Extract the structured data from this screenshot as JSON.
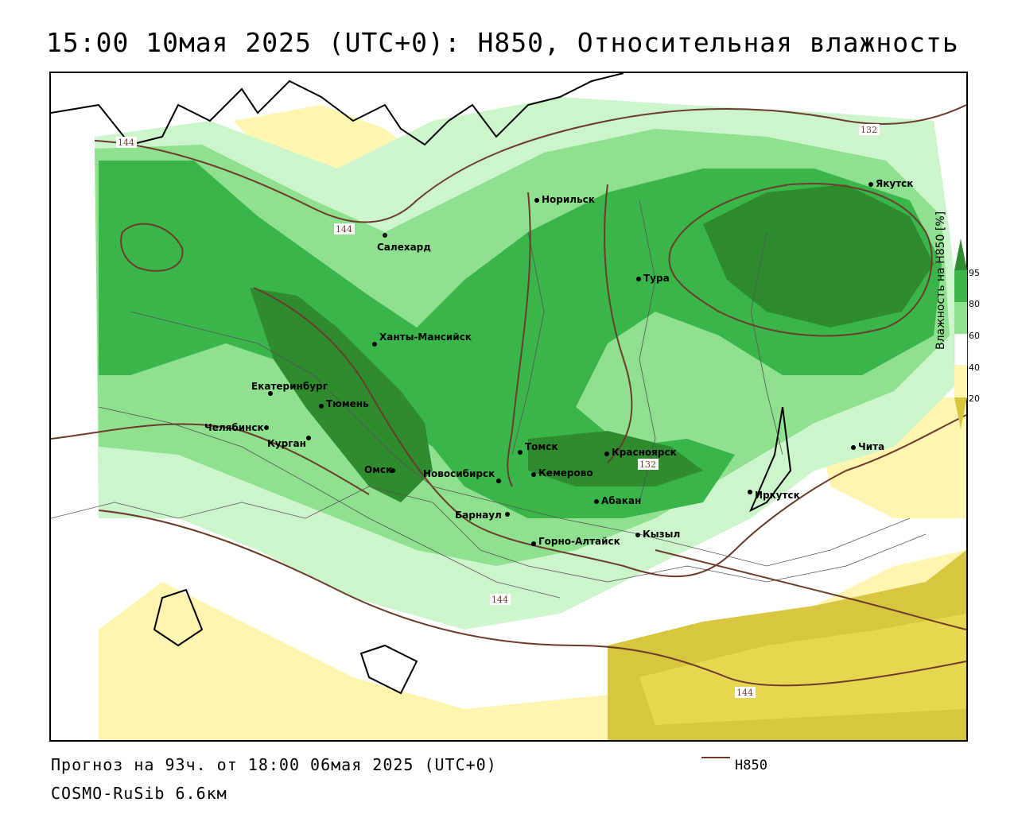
{
  "title": "15:00 10мая 2025 (UTC+0): H850, Относительная влажность",
  "forecast": "Прогноз на 93ч. от 18:00 06мая 2025 (UTC+0)",
  "model": "COSMO-RuSib 6.6км",
  "legend": {
    "line_label": "H850",
    "line_color": "#6b3b2b"
  },
  "colorbar": {
    "title": "Влажность на H850 [%]",
    "ticks": [
      "95",
      "80",
      "60",
      "40",
      "20"
    ],
    "colors": [
      "#2e8b2e",
      "#39b54a",
      "#8fe08f",
      "#ccf5cc",
      "#ffffff",
      "#fff5b0",
      "#d8c640"
    ]
  },
  "cities": [
    {
      "name": "Норильск"
    },
    {
      "name": "Якутск"
    },
    {
      "name": "Салехард"
    },
    {
      "name": "Тура"
    },
    {
      "name": "Ханты-Мансийск"
    },
    {
      "name": "Екатеринбург"
    },
    {
      "name": "Тюмень"
    },
    {
      "name": "Челябинск"
    },
    {
      "name": "Курган"
    },
    {
      "name": "Омск"
    },
    {
      "name": "Новосибирск"
    },
    {
      "name": "Томск"
    },
    {
      "name": "Кемерово"
    },
    {
      "name": "Красноярск"
    },
    {
      "name": "Барнаул"
    },
    {
      "name": "Абакан"
    },
    {
      "name": "Иркутск"
    },
    {
      "name": "Чита"
    },
    {
      "name": "Горно-Алтайск"
    },
    {
      "name": "Кызыл"
    }
  ],
  "contour_labels": [
    "144",
    "144",
    "132",
    "132",
    "144",
    "144"
  ]
}
